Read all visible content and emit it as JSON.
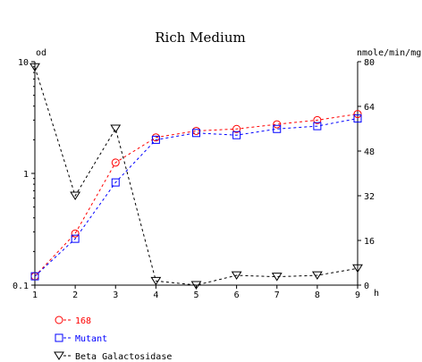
{
  "chart_data": {
    "type": "line",
    "title": "Rich Medium",
    "xlabel": "h",
    "ylabel_left": "od",
    "ylabel_right": "nmole/min/mg",
    "x": [
      1,
      2,
      3,
      4,
      5,
      6,
      7,
      8,
      9
    ],
    "xlim": [
      1,
      9
    ],
    "ylim_left": [
      0.1,
      10
    ],
    "yscale_left": "log",
    "ylim_right": [
      0,
      80
    ],
    "left_ticks": [
      "0.1",
      "1",
      "10"
    ],
    "right_ticks": [
      "0",
      "16",
      "32",
      "48",
      "64",
      "80"
    ],
    "x_ticks": [
      "1",
      "2",
      "3",
      "4",
      "5",
      "6",
      "7",
      "8",
      "9"
    ],
    "grid": false,
    "legend_position": "bottom-left",
    "series": [
      {
        "name": "168",
        "axis": "left",
        "color": "#ff0000",
        "marker": "circle",
        "line_style": "dashed",
        "values": [
          0.12,
          0.29,
          1.25,
          2.1,
          2.4,
          2.5,
          2.75,
          3.0,
          3.4
        ]
      },
      {
        "name": "Mutant",
        "axis": "left",
        "color": "#0000ff",
        "marker": "square",
        "line_style": "dashed",
        "values": [
          0.12,
          0.26,
          0.83,
          2.0,
          2.3,
          2.2,
          2.5,
          2.65,
          3.1
        ]
      },
      {
        "name": "Beta Galactosidase",
        "axis": "right",
        "color": "#000000",
        "marker": "triangle-down",
        "line_style": "dashed",
        "values": [
          78,
          32,
          56,
          1.5,
          0,
          3.5,
          3,
          3.5,
          6
        ]
      }
    ]
  }
}
